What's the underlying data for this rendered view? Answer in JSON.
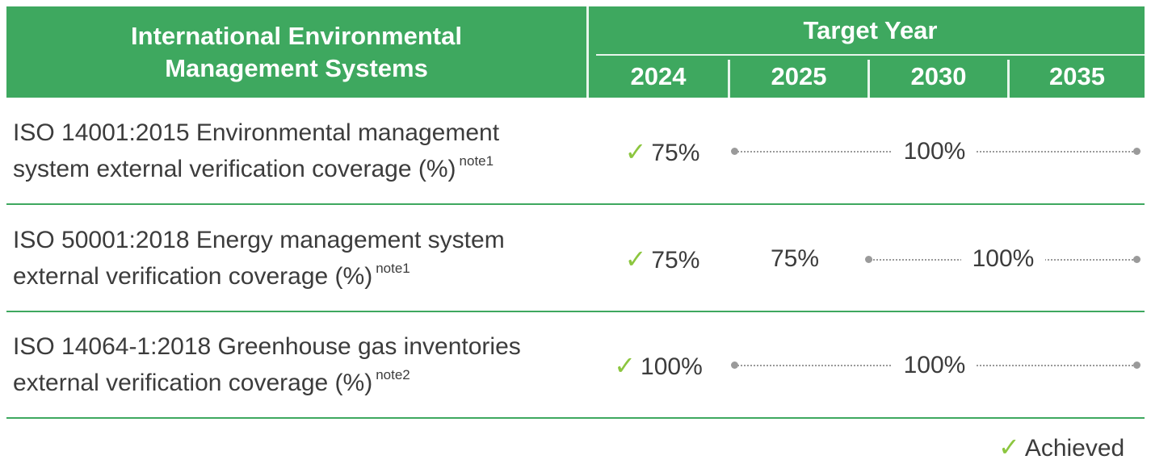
{
  "header": {
    "title": "International Environmental Management Systems",
    "target_year_label": "Target Year",
    "years": [
      "2024",
      "2025",
      "2030",
      "2035"
    ]
  },
  "rows": [
    {
      "line1": "ISO 14001:2015 Environmental management",
      "line2": "system external verification coverage (%)",
      "note": "note1",
      "achieved_2024": "75%",
      "value_2025": "",
      "range_value": "100%"
    },
    {
      "line1": "ISO 50001:2018 Energy management system",
      "line2": "external verification coverage (%)",
      "note": "note1",
      "achieved_2024": "75%",
      "value_2025": "75%",
      "range_value": "100%"
    },
    {
      "line1": "ISO 14064-1:2018 Greenhouse gas inventories",
      "line2": "external verification coverage (%)",
      "note": "note2",
      "achieved_2024": "100%",
      "value_2025": "",
      "range_value": "100%"
    }
  ],
  "legend": {
    "check_symbol": "✓",
    "label": "Achieved"
  },
  "colors": {
    "header_green": "#3ea85f",
    "check_green": "#8cc63f",
    "dot_gray": "#9a9a9a"
  }
}
